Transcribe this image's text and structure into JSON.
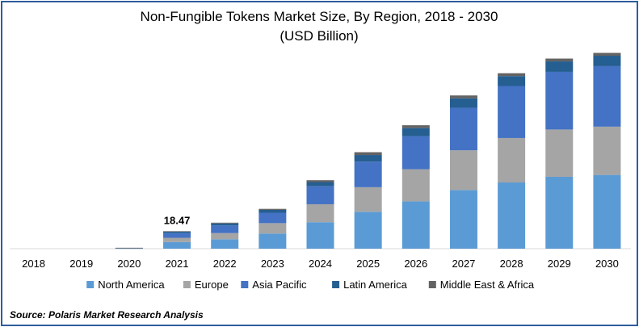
{
  "chart_data": {
    "type": "bar",
    "stacked": true,
    "title": "Non-Fungible Tokens Market Size, By Region, 2018 - 2030",
    "subtitle": "(USD Billion)",
    "categories": [
      "2018",
      "2019",
      "2020",
      "2021",
      "2022",
      "2023",
      "2024",
      "2025",
      "2026",
      "2027",
      "2028",
      "2029",
      "2030"
    ],
    "series": [
      {
        "name": "North America",
        "color": "#5b9bd5",
        "values": [
          0.0,
          0.0,
          0.35,
          7.0,
          10.0,
          16.0,
          28.0,
          39.0,
          50.0,
          62.0,
          70.0,
          76.0,
          78.0
        ]
      },
      {
        "name": "Europe",
        "color": "#a5a5a5",
        "values": [
          0.0,
          0.0,
          0.2,
          4.5,
          6.5,
          11.0,
          19.0,
          26.0,
          34.0,
          42.0,
          47.0,
          50.0,
          51.0
        ]
      },
      {
        "name": "Asia Pacific",
        "color": "#4472c4",
        "values": [
          0.0,
          0.0,
          0.25,
          5.0,
          8.0,
          11.0,
          19.0,
          27.0,
          35.0,
          45.0,
          55.0,
          61.0,
          64.0
        ]
      },
      {
        "name": "Latin America",
        "color": "#255e91",
        "values": [
          0.0,
          0.0,
          0.1,
          1.4,
          2.2,
          3.0,
          4.4,
          7.0,
          8.5,
          10.0,
          10.5,
          11.0,
          11.0
        ]
      },
      {
        "name": "Middle East & Africa",
        "color": "#636363",
        "values": [
          0.0,
          0.0,
          0.05,
          0.57,
          0.8,
          1.1,
          2.0,
          3.0,
          3.0,
          3.0,
          3.0,
          3.0,
          3.0
        ]
      }
    ],
    "annotations": [
      {
        "category": "2021",
        "text": "18.47"
      }
    ],
    "ylim": [
      0,
      210
    ],
    "grid": false,
    "legend_position": "bottom"
  },
  "footer": {
    "source": "Source: Polaris  Market Research Analysis"
  }
}
